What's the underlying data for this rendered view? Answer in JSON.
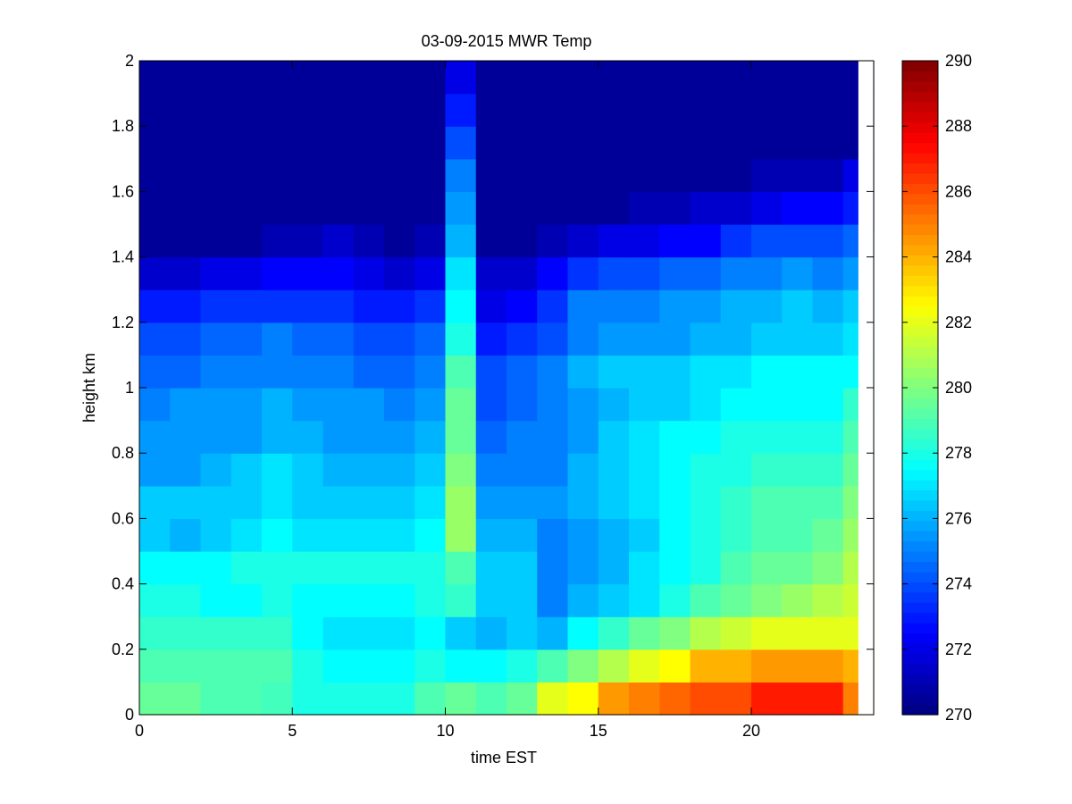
{
  "chart_data": {
    "type": "heatmap",
    "title": "03-09-2015 MWR Temp",
    "xlabel": "time EST",
    "ylabel": "height km",
    "xlim": [
      0,
      24
    ],
    "ylim": [
      0,
      2
    ],
    "x_ticks": [
      0,
      5,
      10,
      15,
      20
    ],
    "y_ticks": [
      0,
      0.2,
      0.4,
      0.6,
      0.8,
      1,
      1.2,
      1.4,
      1.6,
      1.8,
      2
    ],
    "x_tick_labels": [
      "0",
      "5",
      "10",
      "15",
      "20"
    ],
    "y_tick_labels": [
      "0",
      "0.2",
      "0.4",
      "0.6",
      "0.8",
      "1",
      "1.2",
      "1.4",
      "1.6",
      "1.8",
      "2"
    ],
    "x_centers": [
      0.5,
      1.5,
      2.5,
      3.5,
      4.5,
      5.5,
      6.5,
      7.5,
      8.5,
      9.5,
      10.5,
      11.5,
      12.5,
      13.5,
      14.5,
      15.5,
      16.5,
      17.5,
      18.5,
      19.5,
      20.5,
      21.5,
      22.5,
      23.5
    ],
    "y_centers": [
      0.05,
      0.15,
      0.25,
      0.35,
      0.45,
      0.55,
      0.65,
      0.75,
      0.85,
      0.95,
      1.05,
      1.15,
      1.25,
      1.35,
      1.45,
      1.55,
      1.65,
      1.75,
      1.85,
      1.95
    ],
    "z_units": "K",
    "clim": [
      270,
      290
    ],
    "colormap": "jet",
    "colorbar_ticks": [
      270,
      272,
      274,
      276,
      278,
      280,
      282,
      284,
      286,
      288,
      290
    ],
    "colorbar_tick_labels": [
      "270",
      "272",
      "274",
      "276",
      "278",
      "280",
      "282",
      "284",
      "286",
      "288",
      "290"
    ],
    "colorbar_position": "right",
    "grid": false,
    "rows_bottom_to_top": [
      [
        279.5,
        279.5,
        279,
        279,
        278.8,
        278,
        278,
        278,
        278,
        279,
        279.5,
        279,
        279.5,
        282,
        282.5,
        284.5,
        285,
        285.5,
        286,
        286,
        287,
        287,
        287,
        285
      ],
      [
        279,
        279,
        279,
        279,
        279,
        278,
        277.5,
        277.5,
        277.5,
        278,
        277.5,
        277.5,
        278,
        279,
        280,
        281,
        282,
        282.5,
        284,
        284,
        284.5,
        284.5,
        284.5,
        284
      ],
      [
        278.5,
        278.5,
        278.5,
        278.5,
        278.5,
        277.5,
        277,
        277,
        277,
        277.5,
        276.5,
        276,
        276.5,
        276,
        277.5,
        278.5,
        279.5,
        280,
        281,
        281.5,
        282,
        282,
        282,
        282
      ],
      [
        278,
        278,
        277.5,
        277.5,
        278,
        277.5,
        277.5,
        277.5,
        277.5,
        278,
        278.5,
        276.5,
        276.5,
        275,
        276,
        276.5,
        277,
        278,
        279,
        279.5,
        280,
        280.5,
        281,
        281.5
      ],
      [
        277.5,
        277.5,
        277.5,
        278,
        278,
        278,
        278,
        278,
        278,
        278,
        279,
        276.5,
        276.5,
        275,
        275.5,
        276,
        277,
        277.5,
        278,
        279,
        279.5,
        279.5,
        280,
        281
      ],
      [
        276.5,
        276,
        276.5,
        277,
        277.5,
        277,
        277,
        277,
        277,
        277.5,
        280.5,
        276,
        276,
        275,
        275.5,
        276,
        276.5,
        277.5,
        278,
        278.5,
        279,
        279,
        279.5,
        280.5
      ],
      [
        276.5,
        276.5,
        276.5,
        276.5,
        277,
        276.5,
        276.5,
        276.5,
        276.5,
        277,
        280.5,
        275.5,
        275.5,
        275.5,
        276,
        276.5,
        277,
        277.5,
        278,
        278.5,
        279,
        279,
        279,
        280
      ],
      [
        275.5,
        275.5,
        276,
        276.5,
        277,
        276.5,
        276,
        276,
        276,
        276.5,
        280,
        275,
        275,
        275,
        276,
        276.5,
        277,
        277.5,
        278,
        278,
        278.5,
        278.5,
        278.5,
        279.5
      ],
      [
        275.5,
        275.5,
        275.5,
        275.5,
        276,
        276,
        275.5,
        275.5,
        275.5,
        276,
        279.5,
        274.5,
        275,
        275,
        275.5,
        276.5,
        277,
        277.5,
        277.5,
        278,
        278,
        278,
        278,
        279
      ],
      [
        275,
        275.5,
        275.5,
        275.5,
        276,
        275.5,
        275.5,
        275.5,
        275,
        275.5,
        279.5,
        274,
        274.5,
        275,
        275.5,
        276,
        276.5,
        276.5,
        277,
        277.5,
        277.5,
        277.5,
        277.5,
        278.5
      ],
      [
        274.5,
        274.5,
        275,
        275,
        275,
        275,
        275,
        274.5,
        274.5,
        275,
        279,
        274,
        274.5,
        275,
        276,
        276.5,
        276.5,
        276.5,
        277,
        277,
        277.5,
        277.5,
        277.5,
        277.5
      ],
      [
        274,
        274,
        274.5,
        274.5,
        275,
        274.5,
        274.5,
        274,
        274,
        274.5,
        278,
        273,
        273.5,
        274,
        275,
        275.5,
        275.5,
        275.5,
        276,
        276,
        276.5,
        276.5,
        276.5,
        277
      ],
      [
        273,
        273,
        273.5,
        273.5,
        273.5,
        273.5,
        273.5,
        273,
        273,
        273.5,
        277.5,
        272,
        272.5,
        273.5,
        275,
        275,
        275,
        275.5,
        275.5,
        276,
        276,
        276.5,
        276,
        276.5
      ],
      [
        271.5,
        271.5,
        272,
        272,
        272.5,
        272.5,
        272.5,
        272,
        271.5,
        272,
        277,
        271.5,
        271.5,
        272.5,
        273.5,
        274,
        274,
        274.5,
        274.5,
        275,
        275,
        275.5,
        275,
        275.5
      ],
      [
        270.5,
        270.5,
        270.5,
        270.5,
        271,
        271,
        271.5,
        271,
        270.5,
        271,
        276,
        270.5,
        270.5,
        271,
        271.5,
        272,
        272,
        272.5,
        272.5,
        273.5,
        274,
        274,
        274,
        274.5
      ],
      [
        270.5,
        270.5,
        270.5,
        270.5,
        270.5,
        270.5,
        270.5,
        270.5,
        270.5,
        270.5,
        275.5,
        270.5,
        270.5,
        270.5,
        270.5,
        270.5,
        271,
        271,
        271.5,
        271.5,
        272,
        272.5,
        272.5,
        273
      ],
      [
        270.5,
        270.5,
        270.5,
        270.5,
        270.5,
        270.5,
        270.5,
        270.5,
        270.5,
        270.5,
        275,
        270.5,
        270.5,
        270.5,
        270.5,
        270.5,
        270.5,
        270.5,
        270.5,
        270.5,
        271,
        271,
        271,
        272
      ],
      [
        270.5,
        270.5,
        270.5,
        270.5,
        270.5,
        270.5,
        270.5,
        270.5,
        270.5,
        270.5,
        274,
        270.5,
        270.5,
        270.5,
        270.5,
        270.5,
        270.5,
        270.5,
        270.5,
        270.5,
        270.5,
        270.5,
        270.5,
        270.5
      ],
      [
        270.5,
        270.5,
        270.5,
        270.5,
        270.5,
        270.5,
        270.5,
        270.5,
        270.5,
        270.5,
        273,
        270.5,
        270.5,
        270.5,
        270.5,
        270.5,
        270.5,
        270.5,
        270.5,
        270.5,
        270.5,
        270.5,
        270.5,
        270.5
      ],
      [
        270.5,
        270.5,
        270.5,
        270.5,
        270.5,
        270.5,
        270.5,
        270.5,
        270.5,
        270.5,
        272,
        270.5,
        270.5,
        270.5,
        270.5,
        270.5,
        270.5,
        270.5,
        270.5,
        270.5,
        270.5,
        270.5,
        270.5,
        270.5
      ]
    ]
  }
}
